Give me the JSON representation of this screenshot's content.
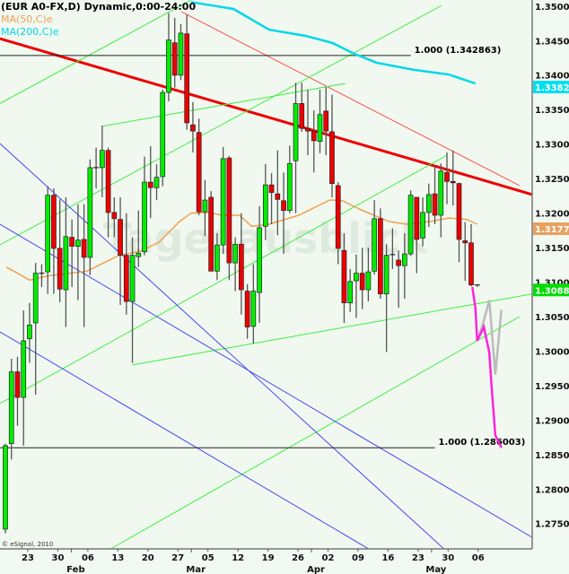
{
  "chart_data": {
    "type": "candlestick",
    "title": "(EUR A0-FX,D) Dynamic,0:00-24:00",
    "indicators": [
      {
        "label": "MA(50,C)e",
        "color": "#f0a050"
      },
      {
        "label": "MA(200,C)e",
        "color": "#00d8e8"
      }
    ],
    "copyright": "© eSignal, 2010",
    "watermark": "Tagesausblick",
    "ylim": [
      1.2709,
      1.3509
    ],
    "y_ticks": [
      "1.350014",
      "1.345013",
      "1.340013",
      "1.335013",
      "1.330013",
      "1.325013",
      "1.320013",
      "1.315013",
      "1.310013",
      "1.305013",
      "1.300013",
      "1.295013",
      "1.290013",
      "1.285013",
      "1.280013",
      "1.275013"
    ],
    "x_ticks": [
      "23",
      "30",
      "06",
      "13",
      "20",
      "27",
      "05",
      "12",
      "19",
      "26",
      "02",
      "09",
      "16",
      "23",
      "30",
      "06"
    ],
    "x_months": [
      {
        "label": "Feb",
        "after_tick": 2
      },
      {
        "label": "Mar",
        "after_tick": 6
      },
      {
        "label": "Apr",
        "after_tick": 10
      },
      {
        "label": "May",
        "after_tick": 14
      }
    ],
    "price_labels": [
      {
        "value": "1.338284",
        "color": "#00e0f0"
      },
      {
        "value": "1.317745",
        "color": "#e8a060"
      },
      {
        "value": "1.30887",
        "color": "#00dd00"
      }
    ],
    "up_color": "#00ee00",
    "down_color": "#ee0000",
    "candles_ohlc": [
      [
        1.2742,
        1.2866,
        1.2736,
        1.2863
      ],
      [
        1.2866,
        1.2989,
        1.2843,
        1.297
      ],
      [
        1.297,
        1.2992,
        1.2892,
        1.2933
      ],
      [
        1.2933,
        1.3059,
        1.2863,
        1.3015
      ],
      [
        1.3018,
        1.307,
        1.2983,
        1.3038
      ],
      [
        1.3041,
        1.3128,
        1.2937,
        1.3113
      ],
      [
        1.3113,
        1.3126,
        1.3093,
        1.3113
      ],
      [
        1.3115,
        1.3239,
        1.3083,
        1.3226
      ],
      [
        1.3226,
        1.3236,
        1.3083,
        1.3149
      ],
      [
        1.3149,
        1.322,
        1.3071,
        1.309
      ],
      [
        1.3089,
        1.3223,
        1.3035,
        1.3166
      ],
      [
        1.3165,
        1.3191,
        1.3093,
        1.3152
      ],
      [
        1.3152,
        1.3213,
        1.3074,
        1.3161
      ],
      [
        1.3162,
        1.3213,
        1.3035,
        1.3136
      ],
      [
        1.3136,
        1.3278,
        1.311,
        1.3266
      ],
      [
        1.3266,
        1.3295,
        1.3236,
        1.3266
      ],
      [
        1.3266,
        1.3327,
        1.3223,
        1.3291
      ],
      [
        1.3291,
        1.3295,
        1.3165,
        1.3201
      ],
      [
        1.3201,
        1.3223,
        1.3165,
        1.3192
      ],
      [
        1.3191,
        1.3223,
        1.3067,
        1.3139
      ],
      [
        1.3139,
        1.32,
        1.3053,
        1.3072
      ],
      [
        1.3072,
        1.3165,
        1.2983,
        1.3139
      ],
      [
        1.3137,
        1.3204,
        1.3122,
        1.3142
      ],
      [
        1.3144,
        1.3282,
        1.3139,
        1.3245
      ],
      [
        1.3245,
        1.3297,
        1.3193,
        1.3237
      ],
      [
        1.3237,
        1.3271,
        1.3219,
        1.3252
      ],
      [
        1.3253,
        1.3379,
        1.3239,
        1.3375
      ],
      [
        1.3375,
        1.349,
        1.3362,
        1.3451
      ],
      [
        1.3447,
        1.3483,
        1.3382,
        1.34
      ],
      [
        1.34,
        1.3474,
        1.3393,
        1.3461
      ],
      [
        1.346,
        1.3488,
        1.3321,
        1.3331
      ],
      [
        1.3328,
        1.3361,
        1.3288,
        1.3319
      ],
      [
        1.3317,
        1.3337,
        1.3197,
        1.3202
      ],
      [
        1.3202,
        1.3248,
        1.3167,
        1.3219
      ],
      [
        1.3223,
        1.3232,
        1.3116,
        1.3116
      ],
      [
        1.3116,
        1.3171,
        1.3103,
        1.3154
      ],
      [
        1.3154,
        1.3296,
        1.3141,
        1.3279
      ],
      [
        1.328,
        1.3283,
        1.3103,
        1.3128
      ],
      [
        1.3128,
        1.3165,
        1.3087,
        1.3155
      ],
      [
        1.3155,
        1.32,
        1.3053,
        1.3089
      ],
      [
        1.3087,
        1.3097,
        1.3018,
        1.3035
      ],
      [
        1.3036,
        1.3126,
        1.3011,
        1.3087
      ],
      [
        1.3085,
        1.321,
        1.3041,
        1.3179
      ],
      [
        1.3181,
        1.3271,
        1.3161,
        1.3241
      ],
      [
        1.3241,
        1.3258,
        1.3184,
        1.323
      ],
      [
        1.3228,
        1.3291,
        1.3168,
        1.322
      ],
      [
        1.3218,
        1.3259,
        1.3141,
        1.3204
      ],
      [
        1.3204,
        1.3298,
        1.32,
        1.3272
      ],
      [
        1.3276,
        1.3389,
        1.32,
        1.3359
      ],
      [
        1.3359,
        1.3389,
        1.3318,
        1.3323
      ],
      [
        1.3323,
        1.3379,
        1.3284,
        1.3319
      ],
      [
        1.3319,
        1.3349,
        1.3259,
        1.3305
      ],
      [
        1.3304,
        1.3379,
        1.3287,
        1.3343
      ],
      [
        1.3348,
        1.3383,
        1.3284,
        1.3319
      ],
      [
        1.3318,
        1.3372,
        1.3223,
        1.3243
      ],
      [
        1.324,
        1.3245,
        1.3126,
        1.3149
      ],
      [
        1.3146,
        1.3171,
        1.3041,
        1.307
      ],
      [
        1.307,
        1.3119,
        1.3057,
        1.3101
      ],
      [
        1.3102,
        1.314,
        1.3048,
        1.3113
      ],
      [
        1.3113,
        1.315,
        1.3061,
        1.3089
      ],
      [
        1.3089,
        1.315,
        1.3072,
        1.3115
      ],
      [
        1.3116,
        1.3219,
        1.3111,
        1.3192
      ],
      [
        1.3192,
        1.3207,
        1.3076,
        1.3083
      ],
      [
        1.3083,
        1.3155,
        1.2999,
        1.3139
      ],
      [
        1.314,
        1.3178,
        1.3119,
        1.314
      ],
      [
        1.3132,
        1.3146,
        1.3063,
        1.3124
      ],
      [
        1.3124,
        1.3171,
        1.3076,
        1.3141
      ],
      [
        1.3141,
        1.3233,
        1.3138,
        1.3226
      ],
      [
        1.3223,
        1.3223,
        1.3113,
        1.3162
      ],
      [
        1.3164,
        1.3223,
        1.3152,
        1.3201
      ],
      [
        1.3201,
        1.3243,
        1.318,
        1.3227
      ],
      [
        1.3228,
        1.3269,
        1.3184,
        1.3197
      ],
      [
        1.3197,
        1.3272,
        1.3165,
        1.3261
      ],
      [
        1.3259,
        1.3288,
        1.3213,
        1.3246
      ],
      [
        1.3246,
        1.3291,
        1.3211,
        1.3244
      ],
      [
        1.3243,
        1.3244,
        1.3129,
        1.3162
      ],
      [
        1.316,
        1.3187,
        1.3102,
        1.3157
      ],
      [
        1.3157,
        1.3184,
        1.3094,
        1.3096
      ],
      [
        1.3096,
        1.3096,
        1.3093,
        1.3096
      ]
    ],
    "ma50": [
      [
        0.15,
        1.3122
      ],
      [
        4.0,
        1.3103
      ],
      [
        7.0,
        1.3109
      ],
      [
        13.5,
        1.3116
      ],
      [
        18.8,
        1.3139
      ],
      [
        22.4,
        1.3145
      ],
      [
        25.4,
        1.3158
      ],
      [
        28.8,
        1.3188
      ],
      [
        30.7,
        1.32
      ],
      [
        33.7,
        1.3201
      ],
      [
        35.8,
        1.3197
      ],
      [
        38.7,
        1.3197
      ],
      [
        40.7,
        1.3181
      ],
      [
        43.6,
        1.3184
      ],
      [
        48.5,
        1.3197
      ],
      [
        53.6,
        1.3219
      ],
      [
        55.5,
        1.3219
      ],
      [
        58.5,
        1.3206
      ],
      [
        63.4,
        1.3188
      ],
      [
        66.3,
        1.3184
      ],
      [
        70.3,
        1.3188
      ],
      [
        73.3,
        1.3193
      ],
      [
        76.3,
        1.3191
      ],
      [
        78.0,
        1.3184
      ]
    ],
    "ma200": [
      [
        30.7,
        1.3506
      ],
      [
        37.7,
        1.3496
      ],
      [
        43.6,
        1.3466
      ],
      [
        49.6,
        1.3457
      ],
      [
        54.0,
        1.3447
      ],
      [
        57.7,
        1.3431
      ],
      [
        61.4,
        1.3418
      ],
      [
        67.4,
        1.3408
      ],
      [
        73.3,
        1.3401
      ],
      [
        77.7,
        1.3388
      ]
    ],
    "trendlines": [
      {
        "color": "#ee0000",
        "width": 3,
        "from": [
          -0.9,
          1.3453
        ],
        "to": [
          87.1,
          1.3227
        ]
      },
      {
        "color": "#ff5050",
        "width": 1,
        "from": [
          29.1,
          1.3492
        ],
        "to": [
          85.0,
          1.324
        ]
      },
      {
        "color": "#44ee44",
        "width": 1,
        "from": [
          -0.9,
          1.3359
        ],
        "to": [
          30.7,
          1.3509
        ]
      },
      {
        "color": "#44ee44",
        "width": 1,
        "from": [
          -0.9,
          1.3154
        ],
        "to": [
          72.1,
          1.3501
        ]
      },
      {
        "color": "#44ee44",
        "width": 1,
        "from": [
          16.0,
          1.3326
        ],
        "to": [
          56.2,
          1.3388
        ]
      },
      {
        "color": "#44ee44",
        "width": 1,
        "from": [
          -0.9,
          1.2924
        ],
        "to": [
          73.0,
          1.3284
        ]
      },
      {
        "color": "#44ee44",
        "width": 1,
        "from": [
          15.3,
          1.2703
        ],
        "to": [
          85.0,
          1.305
        ]
      },
      {
        "color": "#44ee44",
        "width": 1,
        "from": [
          21.0,
          1.298
        ],
        "to": [
          87.1,
          1.3083
        ]
      },
      {
        "color": "#4848f0",
        "width": 1,
        "from": [
          -0.9,
          1.3301
        ],
        "to": [
          75.8,
          1.2687
        ]
      },
      {
        "color": "#4848f0",
        "width": 1,
        "from": [
          -0.9,
          1.3184
        ],
        "to": [
          87.1,
          1.273
        ]
      },
      {
        "color": "#4848f0",
        "width": 1,
        "from": [
          -0.9,
          1.3028
        ],
        "to": [
          60.7,
          1.271
        ]
      }
    ],
    "fib_levels": [
      {
        "price": 1.342863,
        "label": "1.000 (1.342863)",
        "end_bar": 67.0
      },
      {
        "price": 1.286003,
        "label": "1.000 (1.286003)",
        "end_bar": 71.0
      }
    ],
    "projection_primary": {
      "color": "#ff22dd",
      "points": [
        [
          77.2,
          1.3093
        ],
        [
          77.7,
          1.3063
        ],
        [
          78.0,
          1.3015
        ],
        [
          79.1,
          1.3035
        ],
        [
          80.0,
          1.2998
        ],
        [
          80.4,
          1.2946
        ],
        [
          81.0,
          1.2878
        ],
        [
          82.0,
          1.286
        ]
      ]
    },
    "projection_alternate": {
      "color": "#bbbbbb",
      "points": [
        [
          78.0,
          1.3015
        ],
        [
          78.9,
          1.3038
        ],
        [
          80.0,
          1.3074
        ],
        [
          81.0,
          1.2966
        ],
        [
          82.0,
          1.306
        ]
      ]
    }
  }
}
